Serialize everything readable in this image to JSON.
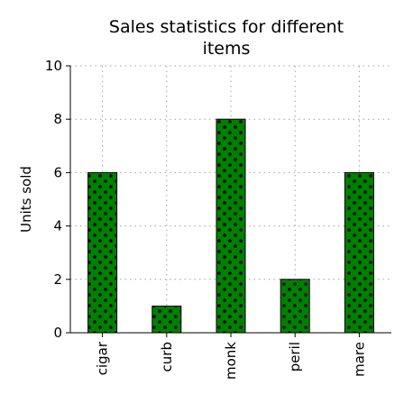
{
  "chart_data": {
    "type": "bar",
    "title_lines": [
      "Sales statistics for different",
      "items"
    ],
    "xlabel": "",
    "ylabel": "Units sold",
    "categories": [
      "cigar",
      "curb",
      "monk",
      "peril",
      "mare"
    ],
    "values": [
      6,
      1,
      8,
      2,
      6
    ],
    "ylim": [
      0,
      10
    ],
    "yticks": [
      "0",
      "2",
      "4",
      "6",
      "8",
      "10"
    ],
    "grid": true,
    "bar_color": "#008000",
    "bar_pattern": "dots",
    "pattern_color": "#000000"
  }
}
